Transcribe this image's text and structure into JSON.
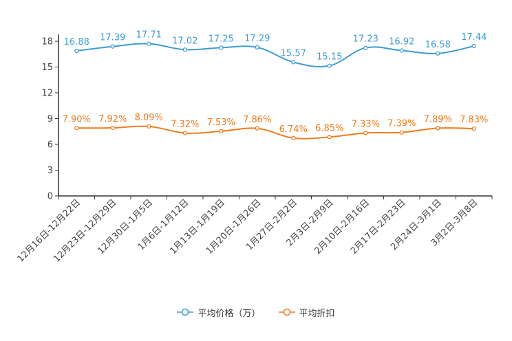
{
  "colors": {
    "series1": "#3d9bd3",
    "series2": "#f07a1a",
    "axis": "#333333"
  },
  "chart_data": {
    "type": "line",
    "categories": [
      "12月16日-12月22日",
      "12月23日-12月29日",
      "12月30日-1月5日",
      "1月6日-1月12日",
      "1月13日-1月19日",
      "1月20日-1月26日",
      "1月27日-2月2日",
      "2月3日-2月9日",
      "2月10日-2月16日",
      "2月17日-2月23日",
      "2月24日-3月1日",
      "3月2日-3月8日"
    ],
    "ylim": [
      0,
      18
    ],
    "yticks": [
      0,
      3,
      6,
      9,
      12,
      15,
      18
    ],
    "series": [
      {
        "name": "平均价格（万）",
        "values": [
          16.88,
          17.39,
          17.71,
          17.02,
          17.25,
          17.29,
          15.57,
          15.15,
          17.23,
          16.92,
          16.58,
          17.44
        ],
        "labels": [
          "16.88",
          "17.39",
          "17.71",
          "17.02",
          "17.25",
          "17.29",
          "15.57",
          "15.15",
          "17.23",
          "16.92",
          "16.58",
          "17.44"
        ]
      },
      {
        "name": "平均折扣",
        "values": [
          7.9,
          7.92,
          8.09,
          7.32,
          7.53,
          7.86,
          6.74,
          6.85,
          7.33,
          7.39,
          7.89,
          7.83
        ],
        "labels": [
          "7.90%",
          "7.92%",
          "8.09%",
          "7.32%",
          "7.53%",
          "7.86%",
          "6.74%",
          "6.85%",
          "7.33%",
          "7.39%",
          "7.89%",
          "7.83%"
        ]
      }
    ],
    "title": "",
    "xlabel": "",
    "ylabel": "",
    "legend": "bottom-center",
    "grid": false
  }
}
